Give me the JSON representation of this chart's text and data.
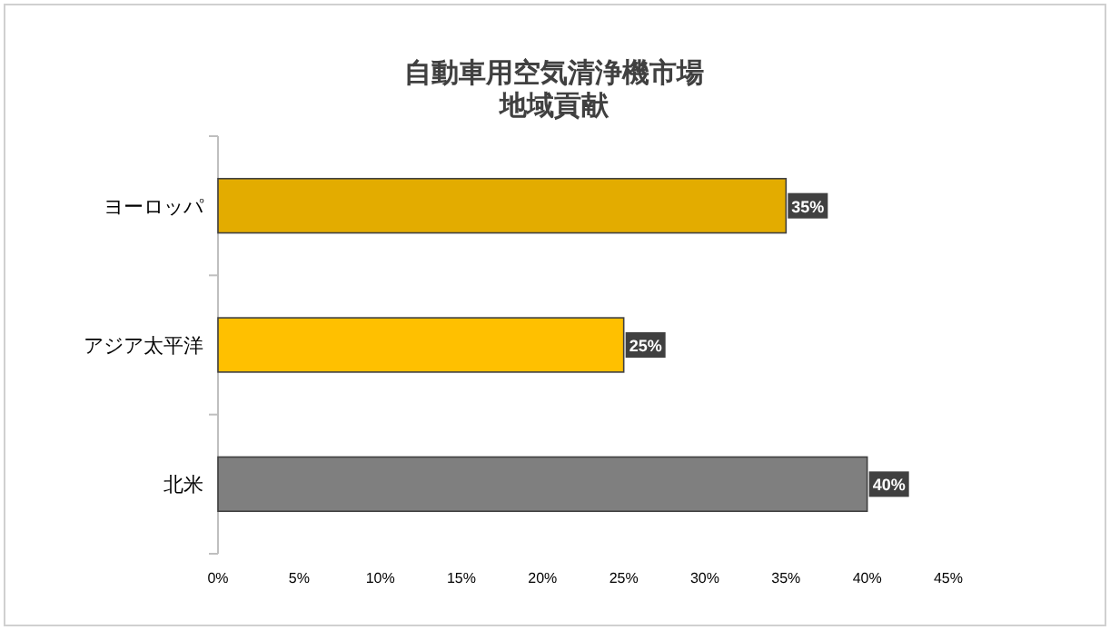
{
  "chart_data": {
    "type": "bar",
    "orientation": "horizontal",
    "title": "自動車用空気清浄機市場",
    "subtitle": "地域貢献",
    "categories": [
      "ヨーロッパ",
      "アジア太平洋",
      "北米"
    ],
    "values": [
      35,
      25,
      40
    ],
    "colors": [
      "#e3ac00",
      "#ffc000",
      "#7f7f7f"
    ],
    "value_labels": [
      "35%",
      "25%",
      "40%"
    ],
    "xlim": [
      0,
      45
    ],
    "xticks": [
      {
        "value": 0,
        "label": "0%"
      },
      {
        "value": 5,
        "label": "5%"
      },
      {
        "value": 10,
        "label": "10%"
      },
      {
        "value": 15,
        "label": "15%"
      },
      {
        "value": 20,
        "label": "20%"
      },
      {
        "value": 25,
        "label": "25%"
      },
      {
        "value": 30,
        "label": "30%"
      },
      {
        "value": 35,
        "label": "35%"
      },
      {
        "value": 40,
        "label": "40%"
      },
      {
        "value": 45,
        "label": "45%"
      }
    ],
    "grid": false
  }
}
